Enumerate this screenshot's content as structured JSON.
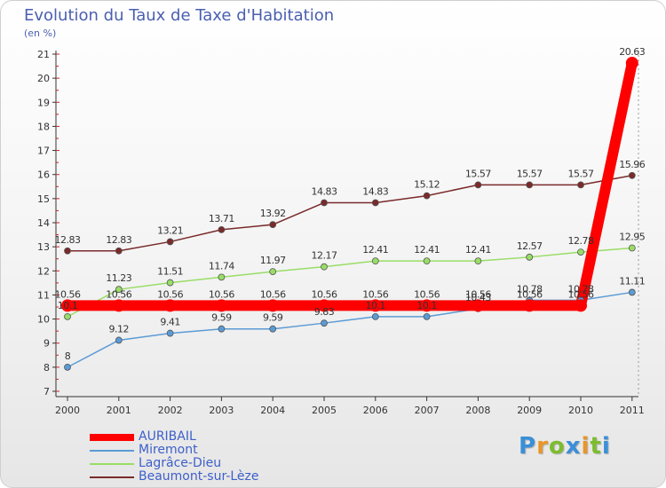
{
  "header": {
    "title": "Evolution du Taux de Taxe d'Habitation",
    "subtitle": "(en %)"
  },
  "logo": {
    "letters": [
      {
        "ch": "P",
        "color": "#3a8fd8"
      },
      {
        "ch": "r",
        "color": "#e8962a"
      },
      {
        "ch": "o",
        "color": "#7cbd2e"
      },
      {
        "ch": "x",
        "color": "#3a8fd8"
      },
      {
        "ch": "i",
        "color": "#e8962a"
      },
      {
        "ch": "t",
        "color": "#7cbd2e"
      },
      {
        "ch": "i",
        "color": "#3a8fd8"
      }
    ]
  },
  "chart_data": {
    "type": "line",
    "title": "Evolution du Taux de Taxe d'Habitation",
    "ylabel": "(en %)",
    "xlabel": "",
    "categories": [
      "2000",
      "2001",
      "2002",
      "2003",
      "2004",
      "2005",
      "2006",
      "2007",
      "2008",
      "2009",
      "2010",
      "2011"
    ],
    "ylim": [
      7,
      21
    ],
    "yticks": [
      7,
      8,
      9,
      10,
      11,
      12,
      13,
      14,
      15,
      16,
      17,
      18,
      19,
      20,
      21
    ],
    "grid": false,
    "legend_position": "bottom-left",
    "series": [
      {
        "name": "AURIBAIL",
        "color": "#ff0000",
        "values": [
          10.56,
          10.56,
          10.56,
          10.56,
          10.56,
          10.56,
          10.56,
          10.56,
          10.56,
          10.56,
          10.56,
          20.63
        ],
        "labels": [
          "10.56",
          "10.56",
          "10.56",
          "10.56",
          "10.56",
          "10.56",
          "10.56",
          "10.56",
          "10.56",
          "10.56",
          "10.56",
          "20.63"
        ]
      },
      {
        "name": "Miremont",
        "color": "#5b9bd5",
        "values": [
          8,
          9.12,
          9.41,
          9.59,
          9.59,
          9.83,
          10.1,
          10.1,
          10.43,
          10.78,
          10.78,
          11.11
        ],
        "labels": [
          "8",
          "9.12",
          "9.41",
          "9.59",
          "9.59",
          "9.83",
          "10.1",
          "10.1",
          "10.43",
          "10.78",
          "10.78",
          "11.11"
        ]
      },
      {
        "name": "Lagrâce-Dieu",
        "color": "#99dd66",
        "values": [
          10.1,
          11.23,
          11.51,
          11.74,
          11.97,
          12.17,
          12.41,
          12.41,
          12.41,
          12.57,
          12.78,
          12.95
        ],
        "labels": [
          "10.1",
          "11.23",
          "11.51",
          "11.74",
          "11.97",
          "12.17",
          "12.41",
          "12.41",
          "12.41",
          "12.57",
          "12.78",
          "12.95"
        ]
      },
      {
        "name": "Beaumont-sur-Lèze",
        "color": "#7a2a2a",
        "values": [
          12.83,
          12.83,
          13.21,
          13.71,
          13.92,
          14.83,
          14.83,
          15.12,
          15.57,
          15.57,
          15.57,
          15.96
        ],
        "labels": [
          "12.83",
          "12.83",
          "13.21",
          "13.71",
          "13.92",
          "14.83",
          "14.83",
          "15.12",
          "15.57",
          "15.57",
          "15.57",
          "15.96"
        ]
      }
    ]
  }
}
